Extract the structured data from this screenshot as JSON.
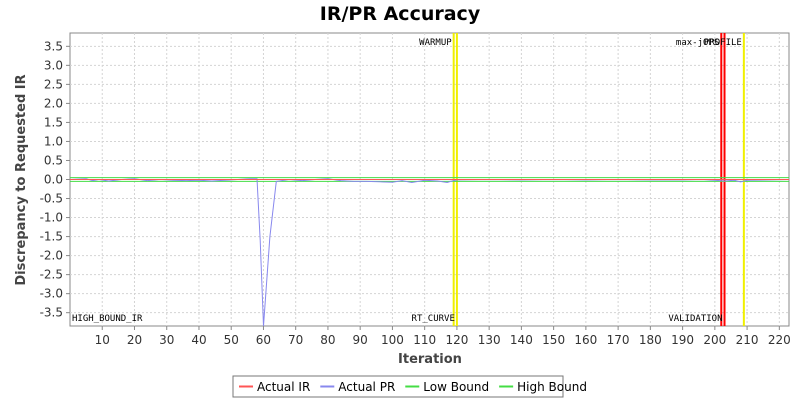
{
  "chart_data": {
    "type": "line",
    "title": "IR/PR Accuracy",
    "xlabel": "Iteration",
    "ylabel": "Discrepancy to Requested IR",
    "xlim": [
      0,
      223
    ],
    "ylim": [
      -3.85,
      3.85
    ],
    "xticks": [
      10,
      20,
      30,
      40,
      50,
      60,
      70,
      80,
      90,
      100,
      110,
      120,
      130,
      140,
      150,
      160,
      170,
      180,
      190,
      200,
      210,
      220
    ],
    "yticks": [
      3.5,
      3.0,
      2.5,
      2.0,
      1.5,
      1.0,
      0.5,
      0.0,
      -0.5,
      -1.0,
      -1.5,
      -2.0,
      -2.5,
      -3.0,
      -3.5
    ],
    "grid": true,
    "legend": "bottom",
    "series": [
      {
        "name": "Actual IR",
        "color": "#ff5555",
        "x": [
          0,
          223
        ],
        "y": [
          0,
          0
        ]
      },
      {
        "name": "Actual PR",
        "color": "#8888ee",
        "x": [
          0,
          5,
          7,
          9,
          12,
          16,
          20,
          24,
          28,
          32,
          36,
          40,
          44,
          48,
          52,
          56,
          58,
          59,
          60,
          62,
          64,
          68,
          72,
          76,
          80,
          84,
          88,
          92,
          96,
          100,
          103,
          106,
          110,
          114,
          117,
          118,
          120,
          130,
          140,
          150,
          160,
          170,
          180,
          190,
          196,
          200,
          203,
          206,
          208,
          210,
          223
        ],
        "y": [
          0,
          0.02,
          -0.03,
          0,
          -0.04,
          0,
          0.02,
          -0.03,
          0,
          -0.02,
          -0.03,
          -0.02,
          -0.04,
          -0.02,
          0,
          0.02,
          0.02,
          -1.6,
          -3.85,
          -1.5,
          -0.05,
          0,
          -0.03,
          0,
          0.02,
          -0.03,
          -0.05,
          -0.05,
          -0.06,
          -0.07,
          -0.03,
          -0.08,
          -0.02,
          -0.04,
          -0.08,
          -0.05,
          -0.01,
          0,
          -0.01,
          0,
          -0.01,
          0,
          -0.01,
          -0.01,
          0,
          -0.02,
          -0.04,
          -0.02,
          -0.06,
          -0.02,
          0
        ]
      },
      {
        "name": "Low Bound",
        "color": "#44dd44",
        "x": [
          0,
          223
        ],
        "y": [
          -0.05,
          -0.05
        ]
      },
      {
        "name": "High Bound",
        "color": "#44dd44",
        "x": [
          0,
          223
        ],
        "y": [
          0.05,
          0.05
        ]
      }
    ],
    "markers": [
      {
        "label": "WARMUP",
        "x": 119,
        "color": "#f0f000",
        "label_pos": "top"
      },
      {
        "label": "RT_CURVE",
        "x": 120,
        "color": "#f0f000",
        "label_pos": "bottom"
      },
      {
        "label": "max-jOPS",
        "x": 202,
        "color": "#ff0000",
        "label_pos": "top"
      },
      {
        "label": "VALIDATION",
        "x": 203,
        "color": "#ff0000",
        "label_pos": "bottom"
      },
      {
        "label": "PROFILE",
        "x": 209,
        "color": "#f0f000",
        "label_pos": "top"
      },
      {
        "label": "HIGH_BOUND_IR",
        "x": 0,
        "color": "#f0f000",
        "label_pos": "bottom"
      }
    ]
  }
}
